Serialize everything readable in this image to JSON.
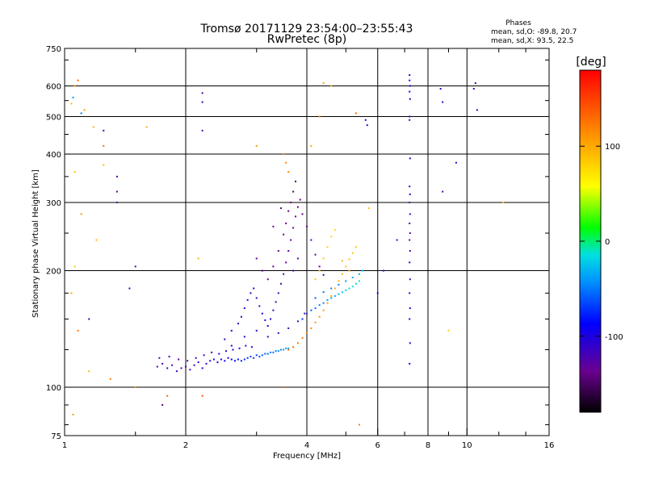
{
  "chart_data": {
    "type": "scatter",
    "title": "Tromsø 20171129 23:54:00–23:55:43",
    "subtitle": "RwPretec (8p)",
    "xlabel": "Frequency [MHz]",
    "ylabel": "Stationary phase Virtual Height [km]",
    "x_scale": "log",
    "y_scale": "log",
    "xlim": [
      1,
      16
    ],
    "ylim": [
      75,
      750
    ],
    "x_ticks": [
      1,
      2,
      4,
      6,
      8,
      10,
      16
    ],
    "y_ticks": [
      75,
      100,
      200,
      300,
      400,
      500,
      600,
      750
    ],
    "x_grid": [
      2,
      4,
      6,
      8,
      10
    ],
    "y_grid": [
      100,
      200,
      300,
      400,
      500,
      600
    ],
    "colorbar": {
      "label": "[deg]",
      "range": [
        -180,
        180
      ],
      "ticks": [
        -100,
        0,
        100
      ]
    },
    "phase_stats": {
      "heading": "Phases",
      "line_o": "mean, sd,O: -89.8, 20.7",
      "line_x": "mean, sd,X:  93.5, 22.5"
    },
    "series": [
      {
        "points": [
          [
            1.7,
            113,
            -125
          ],
          [
            1.75,
            115,
            -120
          ],
          [
            1.8,
            112,
            -118
          ],
          [
            1.85,
            114,
            -122
          ],
          [
            1.9,
            110,
            -115
          ],
          [
            1.95,
            112,
            -120
          ],
          [
            2.0,
            113,
            -118
          ],
          [
            2.05,
            111,
            -115
          ],
          [
            2.1,
            114,
            -112
          ],
          [
            2.15,
            116,
            -110
          ],
          [
            2.2,
            112,
            -108
          ],
          [
            2.25,
            115,
            -112
          ],
          [
            2.3,
            117,
            -105
          ],
          [
            2.35,
            118,
            -100
          ],
          [
            2.4,
            116,
            -98
          ],
          [
            2.45,
            118,
            -95
          ],
          [
            2.5,
            117,
            -92
          ],
          [
            2.55,
            119,
            -90
          ],
          [
            2.6,
            118,
            -88
          ],
          [
            2.65,
            117,
            -85
          ],
          [
            2.7,
            118,
            -80
          ],
          [
            2.75,
            117,
            -78
          ],
          [
            2.8,
            118,
            -75
          ],
          [
            2.85,
            119,
            -72
          ],
          [
            2.9,
            120,
            -70
          ],
          [
            2.95,
            119,
            -68
          ],
          [
            3.0,
            121,
            -66
          ],
          [
            3.05,
            120,
            -64
          ],
          [
            3.1,
            121,
            -60
          ],
          [
            3.15,
            122,
            -58
          ],
          [
            3.2,
            122,
            -55
          ],
          [
            3.25,
            123,
            -52
          ],
          [
            3.3,
            123,
            -50
          ],
          [
            3.35,
            124,
            -48
          ],
          [
            3.4,
            124,
            -45
          ],
          [
            3.45,
            125,
            -42
          ],
          [
            3.5,
            125,
            -40
          ],
          [
            3.55,
            126,
            -38
          ],
          [
            3.6,
            126,
            -35
          ],
          [
            1.72,
            119,
            -130
          ],
          [
            1.82,
            120,
            -128
          ],
          [
            1.92,
            118,
            -125
          ],
          [
            2.02,
            117,
            -122
          ],
          [
            2.12,
            119,
            -120
          ],
          [
            2.22,
            121,
            -118
          ],
          [
            2.32,
            123,
            -115
          ],
          [
            2.42,
            122,
            -112
          ],
          [
            2.52,
            124,
            -110
          ],
          [
            2.62,
            125,
            -108
          ],
          [
            2.72,
            126,
            -105
          ],
          [
            2.82,
            128,
            -102
          ],
          [
            2.92,
            127,
            -100
          ]
        ]
      },
      {
        "points": [
          [
            2.5,
            133,
            -110
          ],
          [
            2.6,
            140,
            -108
          ],
          [
            2.7,
            146,
            -112
          ],
          [
            2.75,
            152,
            -110
          ],
          [
            2.8,
            160,
            -105
          ],
          [
            2.85,
            168,
            -108
          ],
          [
            2.9,
            175,
            -112
          ],
          [
            2.95,
            180,
            -110
          ],
          [
            3.0,
            170,
            -115
          ],
          [
            3.05,
            162,
            -110
          ],
          [
            3.1,
            155,
            -108
          ],
          [
            3.15,
            149,
            -105
          ],
          [
            3.2,
            144,
            -108
          ],
          [
            3.25,
            150,
            -112
          ],
          [
            3.3,
            158,
            -115
          ],
          [
            3.35,
            166,
            -118
          ],
          [
            3.4,
            175,
            -120
          ],
          [
            3.45,
            185,
            -122
          ],
          [
            3.5,
            196,
            -125
          ],
          [
            3.55,
            210,
            -128
          ],
          [
            3.6,
            225,
            -130
          ],
          [
            3.65,
            240,
            -132
          ],
          [
            3.7,
            258,
            -135
          ],
          [
            3.75,
            276,
            -138
          ],
          [
            3.8,
            292,
            -140
          ],
          [
            3.85,
            305,
            -142
          ],
          [
            3.2,
            190,
            -130
          ],
          [
            3.3,
            205,
            -132
          ],
          [
            3.4,
            225,
            -135
          ],
          [
            3.5,
            248,
            -138
          ],
          [
            3.55,
            265,
            -140
          ],
          [
            3.6,
            285,
            -142
          ],
          [
            3.65,
            300,
            -145
          ],
          [
            3.7,
            320,
            -148
          ],
          [
            3.75,
            340,
            -150
          ],
          [
            2.6,
            128,
            -100
          ],
          [
            2.8,
            135,
            -105
          ],
          [
            3.0,
            140,
            -110
          ],
          [
            3.2,
            135,
            -112
          ],
          [
            3.4,
            138,
            -115
          ],
          [
            3.6,
            142,
            -118
          ],
          [
            3.8,
            148,
            -120
          ],
          [
            3.95,
            155,
            -122
          ],
          [
            3.1,
            200,
            -128
          ],
          [
            3.0,
            215,
            -130
          ],
          [
            3.3,
            260,
            -136
          ],
          [
            3.45,
            290,
            -140
          ],
          [
            3.9,
            280,
            -140
          ],
          [
            4.0,
            260,
            -135
          ],
          [
            4.1,
            240,
            -130
          ],
          [
            4.2,
            220,
            -128
          ],
          [
            4.3,
            205,
            -125
          ],
          [
            4.4,
            195,
            -122
          ],
          [
            3.7,
            200,
            -125
          ],
          [
            3.8,
            215,
            -128
          ]
        ]
      },
      {
        "points": [
          [
            3.9,
            150,
            -70
          ],
          [
            4.0,
            155,
            -65
          ],
          [
            4.1,
            158,
            -60
          ],
          [
            4.2,
            160,
            -55
          ],
          [
            4.3,
            163,
            -50
          ],
          [
            4.4,
            165,
            -45
          ],
          [
            4.5,
            168,
            -40
          ],
          [
            4.6,
            170,
            -35
          ],
          [
            4.7,
            172,
            -30
          ],
          [
            4.8,
            174,
            -25
          ],
          [
            4.9,
            176,
            -20
          ],
          [
            5.0,
            178,
            -18
          ],
          [
            5.1,
            180,
            -15
          ],
          [
            5.2,
            182,
            -12
          ],
          [
            5.3,
            185,
            -10
          ],
          [
            5.4,
            188,
            -8
          ],
          [
            4.2,
            170,
            -60
          ],
          [
            4.4,
            176,
            -55
          ],
          [
            4.6,
            180,
            -50
          ],
          [
            4.8,
            184,
            -45
          ],
          [
            5.0,
            188,
            -40
          ],
          [
            5.2,
            192,
            -35
          ],
          [
            5.4,
            196,
            -30
          ],
          [
            5.5,
            200,
            -25
          ]
        ]
      },
      {
        "points": [
          [
            3.6,
            125,
            130
          ],
          [
            3.7,
            127,
            128
          ],
          [
            3.8,
            130,
            125
          ],
          [
            3.9,
            134,
            120
          ],
          [
            4.0,
            138,
            118
          ],
          [
            4.1,
            142,
            115
          ],
          [
            4.2,
            147,
            112
          ],
          [
            4.3,
            152,
            110
          ],
          [
            4.4,
            158,
            108
          ],
          [
            4.5,
            165,
            105
          ],
          [
            4.6,
            172,
            102
          ],
          [
            4.7,
            180,
            100
          ],
          [
            4.8,
            188,
            98
          ],
          [
            4.9,
            196,
            95
          ],
          [
            5.0,
            205,
            92
          ],
          [
            5.1,
            214,
            90
          ],
          [
            5.2,
            222,
            88
          ],
          [
            5.3,
            230,
            85
          ],
          [
            4.5,
            230,
            80
          ],
          [
            4.6,
            245,
            78
          ],
          [
            4.7,
            255,
            76
          ],
          [
            4.4,
            215,
            82
          ],
          [
            4.3,
            200,
            86
          ],
          [
            4.2,
            190,
            88
          ],
          [
            3.5,
            400,
            120
          ],
          [
            3.55,
            380,
            118
          ],
          [
            3.6,
            360,
            115
          ],
          [
            4.1,
            420,
            100
          ],
          [
            4.9,
            212,
            95
          ],
          [
            5.1,
            200,
            96
          ]
        ]
      },
      {
        "points": [
          [
            1.04,
            540,
            95
          ],
          [
            1.06,
            600,
            110
          ],
          [
            1.08,
            620,
            130
          ],
          [
            1.12,
            520,
            105
          ],
          [
            1.18,
            470,
            90
          ],
          [
            1.25,
            420,
            130
          ],
          [
            1.06,
            360,
            88
          ],
          [
            1.1,
            280,
            105
          ],
          [
            1.2,
            240,
            95
          ],
          [
            1.04,
            175,
            100
          ],
          [
            1.08,
            140,
            125
          ],
          [
            1.15,
            110,
            95
          ],
          [
            1.3,
            105,
            120
          ],
          [
            1.5,
            100,
            115
          ],
          [
            1.6,
            470,
            100
          ],
          [
            1.8,
            95,
            130
          ],
          [
            2.2,
            95,
            140
          ],
          [
            3.0,
            420,
            110
          ],
          [
            3.5,
            100,
            130
          ],
          [
            4.4,
            610,
            105
          ],
          [
            4.6,
            600,
            95
          ],
          [
            5.3,
            510,
            130
          ],
          [
            5.7,
            290,
            90
          ],
          [
            9.0,
            140,
            80
          ],
          [
            12.3,
            300,
            95
          ],
          [
            1.05,
            85,
            110
          ],
          [
            1.25,
            375,
            92
          ],
          [
            1.06,
            205,
            88
          ],
          [
            2.15,
            215,
            96
          ],
          [
            4.3,
            500,
            115
          ],
          [
            5.4,
            80,
            120
          ]
        ]
      },
      {
        "points": [
          [
            7.2,
            640,
            -100
          ],
          [
            7.2,
            620,
            -102
          ],
          [
            7.22,
            600,
            -104
          ],
          [
            7.2,
            580,
            -106
          ],
          [
            7.22,
            555,
            -108
          ],
          [
            7.2,
            500,
            -110
          ],
          [
            7.2,
            490,
            -112
          ],
          [
            7.22,
            390,
            -114
          ],
          [
            7.2,
            330,
            -116
          ],
          [
            7.22,
            315,
            -118
          ],
          [
            7.2,
            300,
            -120
          ],
          [
            7.22,
            280,
            -122
          ],
          [
            7.2,
            265,
            -124
          ],
          [
            7.22,
            250,
            -126
          ],
          [
            7.2,
            240,
            -128
          ],
          [
            7.22,
            225,
            -130
          ],
          [
            7.2,
            210,
            -120
          ],
          [
            7.22,
            190,
            -118
          ],
          [
            7.2,
            175,
            -115
          ],
          [
            7.22,
            160,
            -112
          ],
          [
            7.2,
            150,
            -110
          ],
          [
            7.22,
            130,
            -108
          ],
          [
            7.2,
            115,
            -105
          ],
          [
            1.35,
            350,
            -125
          ],
          [
            1.35,
            320,
            -130
          ],
          [
            1.35,
            300,
            -128
          ],
          [
            1.5,
            205,
            -120
          ],
          [
            1.75,
            90,
            -140
          ],
          [
            1.25,
            460,
            -110
          ],
          [
            2.2,
            575,
            -130
          ],
          [
            2.2,
            460,
            -125
          ],
          [
            2.2,
            545,
            -120
          ],
          [
            5.6,
            490,
            -110
          ],
          [
            5.65,
            475,
            -112
          ],
          [
            8.6,
            590,
            -108
          ],
          [
            8.7,
            545,
            -106
          ],
          [
            9.4,
            380,
            -112
          ],
          [
            10.5,
            610,
            -110
          ],
          [
            10.4,
            590,
            -108
          ],
          [
            10.6,
            520,
            -104
          ],
          [
            8.7,
            320,
            -125
          ],
          [
            6.7,
            240,
            -118
          ],
          [
            1.1,
            510,
            -50
          ],
          [
            1.05,
            560,
            -40
          ],
          [
            1.15,
            150,
            -115
          ],
          [
            1.45,
            180,
            -120
          ],
          [
            6.2,
            200,
            -105
          ],
          [
            6.0,
            175,
            -110
          ]
        ]
      }
    ]
  }
}
